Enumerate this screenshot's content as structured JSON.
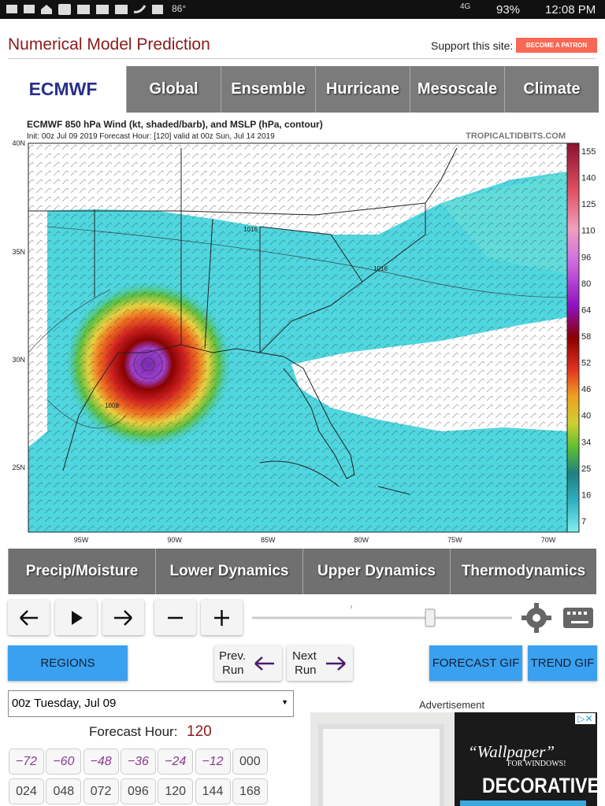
{
  "status_bar": {
    "temperature": "86°",
    "network": "4G",
    "battery": "93%",
    "time": "12:08 PM"
  },
  "header": {
    "title": "Numerical Model Prediction",
    "support_label": "Support this site:",
    "patron_button": "BECOME A PATRON"
  },
  "model_tabs": {
    "current": "ECMWF",
    "tabs": [
      "Global",
      "Ensemble",
      "Hurricane",
      "Mesoscale",
      "Climate"
    ]
  },
  "map": {
    "title": "ECMWF 850 hPa Wind (kt, shaded/barb), and MSLP (hPa, contour)",
    "subtitle": "Init: 00z Jul 09 2019   Forecast Hour: [120]   valid at 00z Sun, Jul 14 2019",
    "watermark": "TROPICALTIDBITS.COM",
    "lat_labels": [
      "40N",
      "35N",
      "30N",
      "25N"
    ],
    "lon_labels": [
      "95W",
      "90W",
      "85W",
      "80W",
      "75W",
      "70W"
    ],
    "colorbar_labels": [
      "155",
      "140",
      "125",
      "110",
      "96",
      "80",
      "64",
      "58",
      "52",
      "46",
      "40",
      "34",
      "25",
      "16",
      "7"
    ],
    "contour_labels": [
      "1016",
      "1016",
      "1008"
    ]
  },
  "category_tabs": [
    "Precip/Moisture",
    "Lower Dynamics",
    "Upper Dynamics",
    "Thermodynamics"
  ],
  "buttons": {
    "regions": "REGIONS",
    "prev_run": [
      "Prev.",
      "Run"
    ],
    "next_run": [
      "Next",
      "Run"
    ],
    "forecast_gif": "FORECAST GIF",
    "trend_gif": "TREND GIF"
  },
  "run_select": "00z Tuesday, Jul 09",
  "advertisement_label": "Advertisement",
  "forecast_hour_label": "Forecast Hour:",
  "forecast_hour": "120",
  "hour_buttons": [
    [
      "−72",
      "−60",
      "−48",
      "−36",
      "−24",
      "−12",
      "000"
    ],
    [
      "024",
      "048",
      "072",
      "096",
      "120",
      "144",
      "168"
    ]
  ],
  "ad": {
    "headline": "“Wallpaper”",
    "subline": "FOR WINDOWS!",
    "text": "DECORATIVE"
  }
}
